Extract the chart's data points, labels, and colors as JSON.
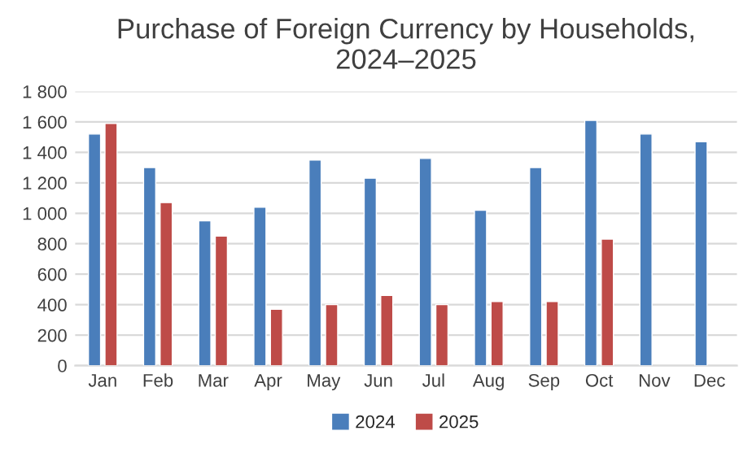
{
  "chart_data": {
    "type": "bar",
    "title": "Purchase of Foreign Currency by Households,\n2024–2025",
    "categories": [
      "Jan",
      "Feb",
      "Mar",
      "Apr",
      "May",
      "Jun",
      "Jul",
      "Aug",
      "Sep",
      "Oct",
      "Nov",
      "Dec"
    ],
    "series": [
      {
        "name": "2024",
        "color": "#4a7ebb",
        "values": [
          1520,
          1300,
          950,
          1040,
          1350,
          1230,
          1360,
          1020,
          1300,
          1610,
          1520,
          1470
        ]
      },
      {
        "name": "2025",
        "color": "#be4b48",
        "values": [
          1590,
          1070,
          850,
          370,
          400,
          460,
          400,
          420,
          420,
          830,
          null,
          null
        ]
      }
    ],
    "ylim": [
      0,
      1800
    ],
    "yticks": [
      0,
      200,
      400,
      600,
      800,
      {
        "value": 1000,
        "label": "1 000"
      },
      {
        "value": 1200,
        "label": "1 200"
      },
      {
        "value": 1400,
        "label": "1 400"
      },
      {
        "value": 1600,
        "label": "1 600"
      },
      {
        "value": 1800,
        "label": "1 800"
      }
    ],
    "grid": "y",
    "legend": "bottom"
  }
}
